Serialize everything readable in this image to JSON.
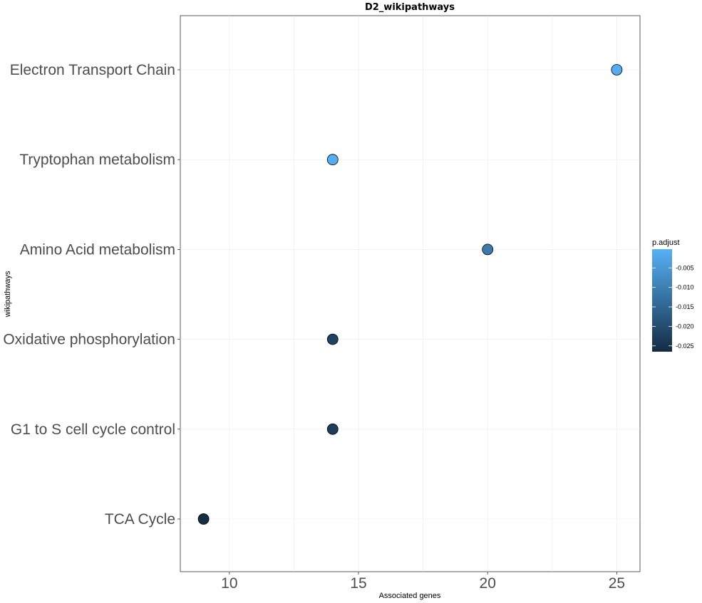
{
  "chart_data": {
    "type": "scatter",
    "title": "D2_wikipathways",
    "xlabel": "Associated genes",
    "ylabel": "wikipathways",
    "xlim": [
      8.1,
      25.9
    ],
    "x_ticks": [
      10,
      15,
      20,
      25
    ],
    "categories": [
      "TCA Cycle",
      "G1 to S cell cycle control",
      "Oxidative phosphorylation",
      "Amino Acid metabolism",
      "Tryptophan metabolism",
      "Electron Transport Chain"
    ],
    "points": [
      {
        "category": "Electron Transport Chain",
        "x": 25,
        "p_adjust": -0.001
      },
      {
        "category": "Tryptophan metabolism",
        "x": 14,
        "p_adjust": -0.001
      },
      {
        "category": "Amino Acid metabolism",
        "x": 20,
        "p_adjust": -0.011
      },
      {
        "category": "Oxidative phosphorylation",
        "x": 14,
        "p_adjust": -0.022
      },
      {
        "category": "G1 to S cell cycle control",
        "x": 14,
        "p_adjust": -0.023
      },
      {
        "category": "TCA Cycle",
        "x": 9,
        "p_adjust": -0.026
      }
    ],
    "grid": true,
    "legend": {
      "title": "p.adjust",
      "position": "right",
      "ticks": [
        -0.005,
        -0.01,
        -0.015,
        -0.02,
        -0.025
      ],
      "tick_labels": [
        "-0.005",
        "-0.010",
        "-0.015",
        "-0.020",
        "-0.025"
      ],
      "range": [
        -0.0265,
        -0.0002
      ],
      "color_low": "#132b43",
      "color_high": "#56b1f7"
    }
  }
}
